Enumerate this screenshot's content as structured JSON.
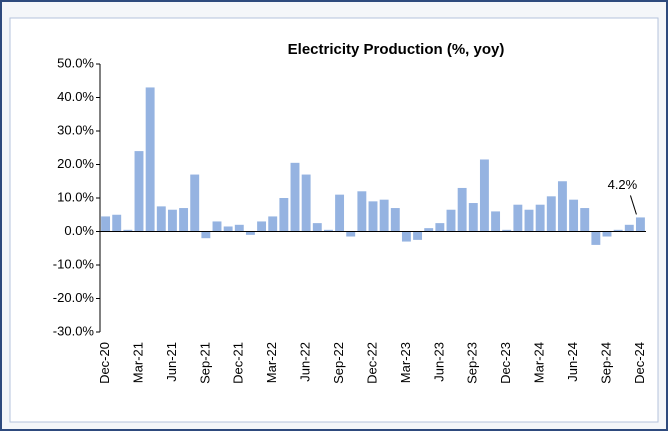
{
  "chart_data": {
    "type": "bar",
    "title": "Electricity Production (%, yoy)",
    "categories": [
      "Dec-20",
      null,
      null,
      "Mar-21",
      null,
      null,
      "Jun-21",
      null,
      null,
      "Sep-21",
      null,
      null,
      "Dec-21",
      null,
      null,
      "Mar-22",
      null,
      null,
      "Jun-22",
      null,
      null,
      "Sep-22",
      null,
      null,
      "Dec-22",
      null,
      null,
      "Mar-23",
      null,
      null,
      "Jun-23",
      null,
      null,
      "Sep-23",
      null,
      null,
      "Dec-23",
      null,
      null,
      "Mar-24",
      null,
      null,
      "Jun-24",
      null,
      null,
      "Sep-24",
      null,
      null,
      "Dec-24"
    ],
    "values": [
      4.5,
      5.0,
      0.5,
      24,
      43,
      7.5,
      6.5,
      7,
      17,
      -2,
      3,
      1.5,
      2,
      -1,
      3,
      4.5,
      10,
      20.5,
      17,
      2.5,
      0.5,
      11,
      -1.5,
      12,
      9,
      9.5,
      7,
      -3,
      -2.5,
      1,
      2.5,
      6.5,
      13,
      8.5,
      21.5,
      6,
      0.5,
      8,
      6.5,
      8,
      10.5,
      15,
      9.5,
      7,
      -4,
      -1.5,
      0.5,
      2,
      4.2
    ],
    "value_labels": [
      null,
      null,
      null,
      null,
      null,
      null,
      null,
      null,
      null,
      null,
      null,
      null,
      null,
      null,
      null,
      null,
      null,
      null,
      null,
      null,
      null,
      null,
      null,
      null,
      null,
      null,
      null,
      null,
      null,
      null,
      null,
      null,
      null,
      null,
      null,
      null,
      null,
      null,
      null,
      null,
      null,
      null,
      null,
      null,
      null,
      null,
      null,
      null,
      "4.2%"
    ],
    "color": "#95b3e1",
    "ylim": [
      -30,
      50
    ],
    "yticks": [
      {
        "value": -30,
        "label": "-30.0%"
      },
      {
        "value": -20,
        "label": "-20.0%"
      },
      {
        "value": -10,
        "label": "-10.0%"
      },
      {
        "value": 0,
        "label": "0.0%"
      },
      {
        "value": 10,
        "label": "10.0%"
      },
      {
        "value": 20,
        "label": "20.0%"
      },
      {
        "value": 30,
        "label": "30.0%"
      },
      {
        "value": 40,
        "label": "40.0%"
      },
      {
        "value": 50,
        "label": "50.0%"
      }
    ],
    "grid": false
  }
}
